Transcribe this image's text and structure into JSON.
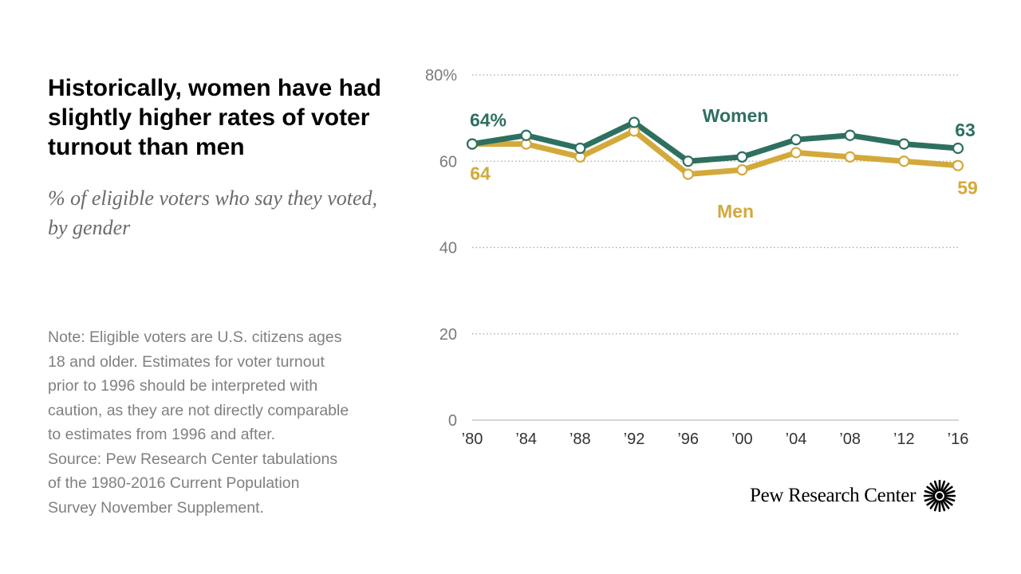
{
  "header": {
    "title": "Historically, women have had slightly higher rates of voter turnout than men",
    "subtitle": "% of eligible voters who say they voted, by gender"
  },
  "note": {
    "lines": [
      "Note: Eligible voters are U.S. citizens ages",
      "18 and older. Estimates for voter turnout",
      "prior to 1996 should be interpreted with",
      "caution, as they are not directly comparable",
      "to estimates from 1996 and after.",
      "Source: Pew Research Center tabulations",
      "of the 1980-2016 Current Population",
      "Survey November Supplement."
    ]
  },
  "brand": {
    "name": "Pew Research Center"
  },
  "colors": {
    "women": "#2e7060",
    "men": "#d3a93a",
    "axis": "#7a7a7a",
    "grid": "#a8a8a8"
  },
  "chart_data": {
    "type": "line",
    "title": "Historically, women have had slightly higher rates of voter turnout than men",
    "ylabel": "% of eligible voters who say they voted",
    "xlabel": "",
    "categories": [
      "’80",
      "’84",
      "’88",
      "’92",
      "’96",
      "’00",
      "’04",
      "’08",
      "’12",
      "’16"
    ],
    "ylim": [
      0,
      80
    ],
    "yticks": [
      0,
      20,
      40,
      60,
      80
    ],
    "ytick_labels": [
      "0",
      "20",
      "40",
      "60",
      "80%"
    ],
    "grid": true,
    "series": [
      {
        "name": "Women",
        "values": [
          64,
          66,
          63,
          69,
          60,
          61,
          65,
          66,
          64,
          63
        ],
        "start_label": "64%",
        "end_label": "63"
      },
      {
        "name": "Men",
        "values": [
          64,
          64,
          61,
          67,
          57,
          58,
          62,
          61,
          60,
          59
        ],
        "start_label": "64",
        "end_label": "59"
      }
    ]
  }
}
